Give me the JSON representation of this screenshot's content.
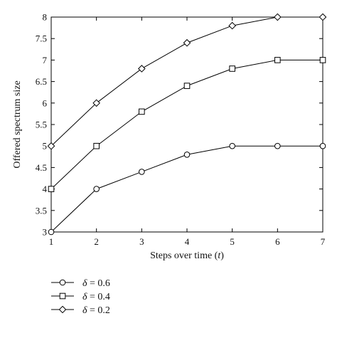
{
  "chart_data": {
    "type": "line",
    "xlabel_prefix": "Steps over time (",
    "xlabel_var": "t",
    "xlabel_suffix": ")",
    "ylabel": "Offered spectrum size",
    "x": [
      1,
      2,
      3,
      4,
      5,
      6,
      7
    ],
    "xlim": [
      1,
      7
    ],
    "ylim": [
      3,
      8
    ],
    "xticks": [
      "1",
      "2",
      "3",
      "4",
      "5",
      "6",
      "7"
    ],
    "yticks": [
      "3",
      "3.5",
      "4",
      "4.5",
      "5",
      "5.5",
      "6",
      "6.5",
      "7",
      "7.5",
      "8"
    ],
    "grid": false,
    "legend_position": "below-left",
    "series": [
      {
        "name": "δ = 0.6",
        "symbol": "δ",
        "value_text": "= 0.6",
        "marker": "circle",
        "values": [
          3,
          4,
          4.4,
          4.8,
          5,
          5,
          5
        ]
      },
      {
        "name": "δ = 0.4",
        "symbol": "δ",
        "value_text": "= 0.4",
        "marker": "square",
        "values": [
          4,
          5,
          5.8,
          6.4,
          6.8,
          7,
          7
        ]
      },
      {
        "name": "δ = 0.2",
        "symbol": "δ",
        "value_text": "= 0.2",
        "marker": "diamond",
        "values": [
          5,
          6,
          6.8,
          7.4,
          7.8,
          8,
          8
        ]
      }
    ],
    "colors": {
      "line": "#000000",
      "marker_fill": "#ffffff"
    }
  }
}
